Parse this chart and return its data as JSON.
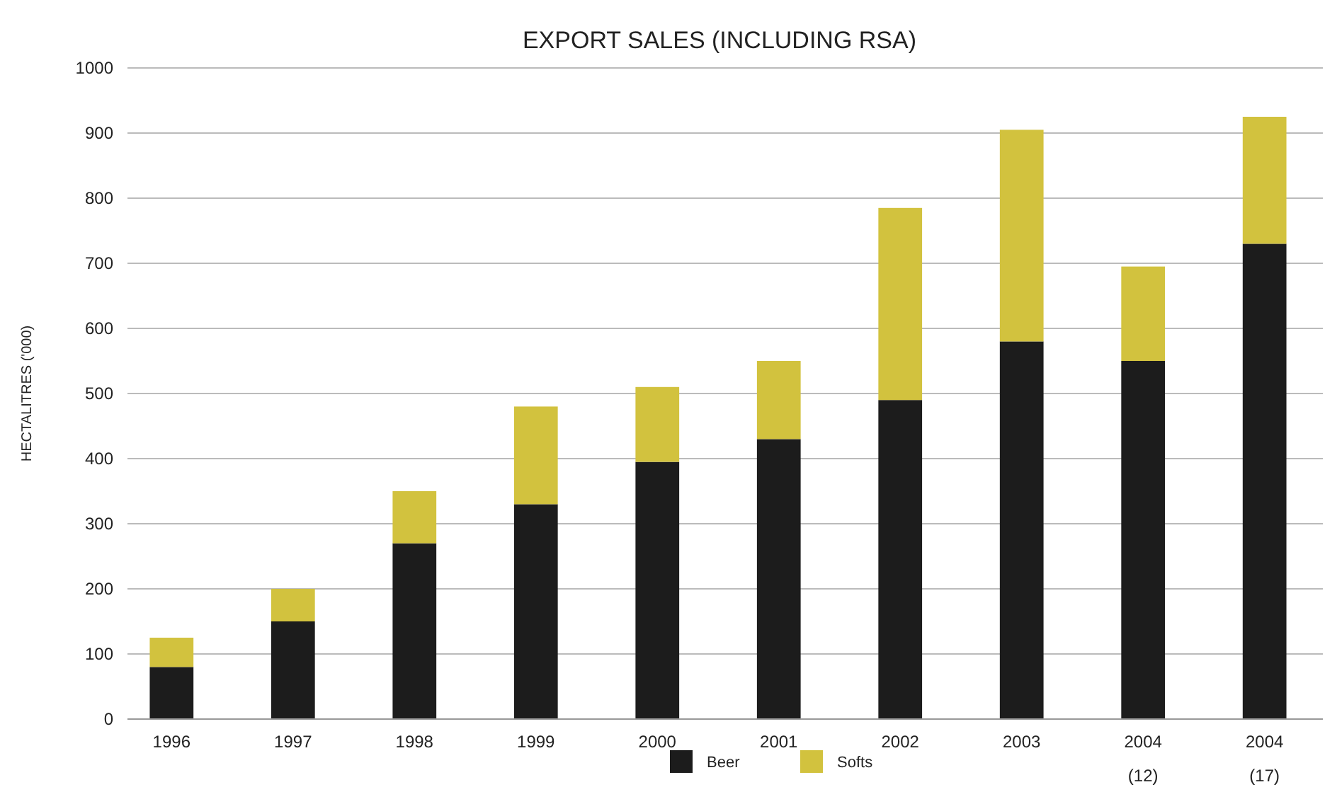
{
  "chart_data": {
    "type": "bar",
    "title": "EXPORT SALES (INCLUDING RSA)",
    "ylabel": "HECTALITRES ('000)",
    "categories": [
      "1996",
      "1997",
      "1998",
      "1999",
      "2000",
      "2001",
      "2002",
      "2003",
      "2004\n(12)",
      "2004\n(17)"
    ],
    "series": [
      {
        "name": "Beer",
        "color": "#1c1c1c",
        "values": [
          80,
          150,
          270,
          330,
          395,
          430,
          490,
          580,
          550,
          730
        ]
      },
      {
        "name": "Softs",
        "color": "#d2c23e",
        "values": [
          45,
          50,
          80,
          150,
          115,
          120,
          295,
          325,
          145,
          195
        ]
      }
    ],
    "stacked": true,
    "ylim": [
      0,
      1000
    ],
    "yticks": [
      0,
      100,
      200,
      300,
      400,
      500,
      600,
      700,
      800,
      900,
      1000
    ],
    "grid": "y",
    "legend": "bottom"
  }
}
